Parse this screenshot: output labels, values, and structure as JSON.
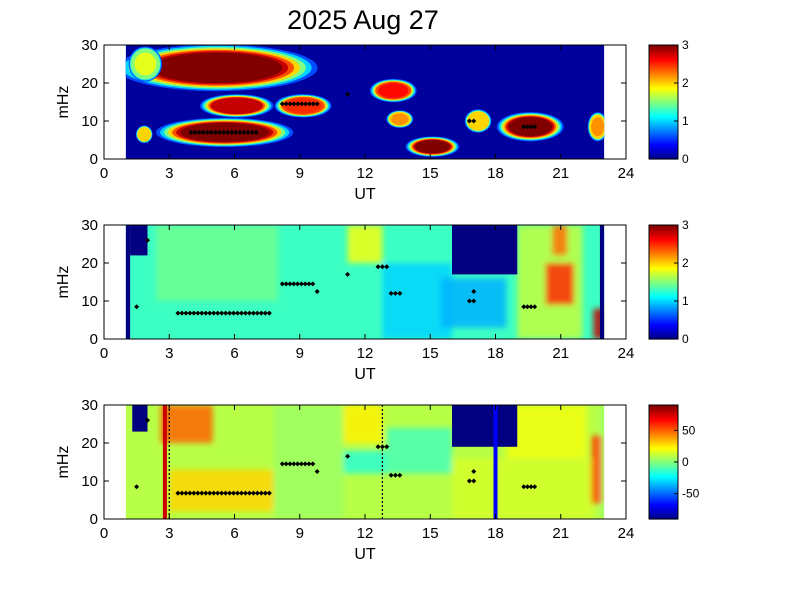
{
  "figure": {
    "title": "2025 Aug 27"
  },
  "chart_data": [
    {
      "type": "heatmap",
      "xlabel": "UT",
      "ylabel": "mHz",
      "xlim": [
        0,
        24
      ],
      "ylim": [
        0,
        30
      ],
      "x_ticks": [
        "0",
        "3",
        "6",
        "9",
        "12",
        "15",
        "18",
        "21",
        "24"
      ],
      "y_ticks": [
        "0",
        "10",
        "20",
        "30"
      ],
      "data_x_range": [
        1,
        23
      ],
      "colorbar": {
        "range": [
          0,
          3
        ],
        "ticks": [
          "0",
          "1",
          "2",
          "3"
        ]
      },
      "background_color": "#00009c",
      "hot_regions": [
        {
          "x": [
            2.2,
            8.2
          ],
          "y": [
            20,
            28
          ],
          "level": 3
        },
        {
          "x": [
            3.5,
            7.6
          ],
          "y": [
            4.5,
            9.5
          ],
          "level": 3
        },
        {
          "x": [
            5.0,
            7.2
          ],
          "y": [
            12,
            16
          ],
          "level": 2.8
        },
        {
          "x": [
            8.3,
            10.0
          ],
          "y": [
            12,
            16
          ],
          "level": 2.5
        },
        {
          "x": [
            12.6,
            14.0
          ],
          "y": [
            16,
            20
          ],
          "level": 2.6
        },
        {
          "x": [
            13.2,
            14.0
          ],
          "y": [
            9,
            12
          ],
          "level": 2.2
        },
        {
          "x": [
            14.3,
            15.9
          ],
          "y": [
            1.5,
            5
          ],
          "level": 3
        },
        {
          "x": [
            16.8,
            17.6
          ],
          "y": [
            8,
            12
          ],
          "level": 2.0
        },
        {
          "x": [
            18.6,
            20.6
          ],
          "y": [
            6,
            11
          ],
          "level": 3
        },
        {
          "x": [
            22.4,
            23.0
          ],
          "y": [
            6,
            11
          ],
          "level": 2.2
        },
        {
          "x": [
            1.4,
            2.4
          ],
          "y": [
            22,
            28
          ],
          "level": 1.8
        },
        {
          "x": [
            1.6,
            2.1
          ],
          "y": [
            5,
            8
          ],
          "level": 2.0
        }
      ],
      "markers": [
        {
          "x": [
            4.0,
            7.0
          ],
          "y": 7
        },
        {
          "x": [
            8.2,
            9.8
          ],
          "y": 14.5
        },
        {
          "x": [
            11.2,
            11.2
          ],
          "y": 17
        },
        {
          "x": [
            16.8,
            17.0
          ],
          "y": 10
        },
        {
          "x": [
            19.3,
            19.8
          ],
          "y": 8.5
        }
      ]
    },
    {
      "type": "heatmap",
      "xlabel": "UT",
      "ylabel": "mHz",
      "xlim": [
        0,
        24
      ],
      "ylim": [
        0,
        30
      ],
      "x_ticks": [
        "0",
        "3",
        "6",
        "9",
        "12",
        "15",
        "18",
        "21",
        "24"
      ],
      "y_ticks": [
        "0",
        "10",
        "20",
        "30"
      ],
      "data_x_range": [
        1,
        23
      ],
      "colorbar": {
        "range": [
          0,
          3
        ],
        "ticks": [
          "0",
          "1",
          "2",
          "3"
        ]
      },
      "base_level": 1.3,
      "variation_regions": [
        {
          "x": [
            2.4,
            8.0
          ],
          "y": [
            10,
            30
          ],
          "level": 1.45
        },
        {
          "x": [
            11.2,
            12.8
          ],
          "y": [
            20,
            30
          ],
          "level": 1.85
        },
        {
          "x": [
            12.8,
            16.0
          ],
          "y": [
            0,
            20
          ],
          "level": 1.0
        },
        {
          "x": [
            15.5,
            18.5
          ],
          "y": [
            3,
            16
          ],
          "level": 0.9
        },
        {
          "x": [
            19.0,
            22.0
          ],
          "y": [
            0,
            30
          ],
          "level": 1.7
        },
        {
          "x": [
            20.3,
            21.6
          ],
          "y": [
            9,
            20
          ],
          "level": 2.5
        },
        {
          "x": [
            20.6,
            21.3
          ],
          "y": [
            22,
            30
          ],
          "level": 2.3
        },
        {
          "x": [
            22.5,
            23.0
          ],
          "y": [
            0,
            8
          ],
          "level": 2.8
        }
      ],
      "low_regions": [
        {
          "x": [
            1.2,
            2.0
          ],
          "y": [
            22,
            30
          ],
          "level": 0
        },
        {
          "x": [
            16.0,
            19.0
          ],
          "y": [
            17,
            30
          ],
          "level": 0
        },
        {
          "x": [
            22.8,
            23.0
          ],
          "y": [
            0,
            30
          ],
          "level": 0
        },
        {
          "x": [
            1.0,
            1.2
          ],
          "y": [
            0,
            30
          ],
          "level": 0
        }
      ],
      "markers": [
        {
          "x": [
            1.5,
            1.5
          ],
          "y": 8.5
        },
        {
          "x": [
            2.0,
            2.0
          ],
          "y": 26
        },
        {
          "x": [
            3.4,
            7.6
          ],
          "y": 6.8
        },
        {
          "x": [
            8.2,
            9.6
          ],
          "y": 14.5
        },
        {
          "x": [
            9.8,
            9.8
          ],
          "y": 12.5
        },
        {
          "x": [
            11.2,
            11.2
          ],
          "y": 17
        },
        {
          "x": [
            12.6,
            13.0
          ],
          "y": 19
        },
        {
          "x": [
            13.2,
            13.6
          ],
          "y": 12
        },
        {
          "x": [
            16.8,
            17.0
          ],
          "y": 10
        },
        {
          "x": [
            17.0,
            17.0
          ],
          "y": 12.5
        },
        {
          "x": [
            19.3,
            19.8
          ],
          "y": 8.5
        }
      ]
    },
    {
      "type": "heatmap",
      "xlabel": "UT",
      "ylabel": "mHz",
      "xlim": [
        0,
        24
      ],
      "ylim": [
        0,
        30
      ],
      "x_ticks": [
        "0",
        "3",
        "6",
        "9",
        "12",
        "15",
        "18",
        "21",
        "24"
      ],
      "y_ticks": [
        "0",
        "10",
        "20",
        "30"
      ],
      "data_x_range": [
        1,
        23
      ],
      "colorbar": {
        "range": [
          -90,
          90
        ],
        "ticks": [
          "-50",
          "0",
          "50"
        ],
        "tick_values": [
          -50,
          0,
          50
        ]
      },
      "base_level": 10,
      "variation_regions": [
        {
          "x": [
            2.6,
            5.0
          ],
          "y": [
            20,
            30
          ],
          "level": 50
        },
        {
          "x": [
            3.0,
            7.8
          ],
          "y": [
            2,
            13
          ],
          "level": 30
        },
        {
          "x": [
            7.8,
            11.0
          ],
          "y": [
            0,
            30
          ],
          "level": 5
        },
        {
          "x": [
            11.0,
            12.8
          ],
          "y": [
            20,
            30
          ],
          "level": 25
        },
        {
          "x": [
            13.0,
            16.0
          ],
          "y": [
            12,
            24
          ],
          "level": -10
        },
        {
          "x": [
            16.0,
            22.5
          ],
          "y": [
            0,
            16
          ],
          "level": 15
        },
        {
          "x": [
            18.5,
            22.2
          ],
          "y": [
            16,
            30
          ],
          "level": 20
        },
        {
          "x": [
            22.4,
            22.9
          ],
          "y": [
            4,
            22
          ],
          "level": 55
        },
        {
          "x": [
            22.9,
            23.0
          ],
          "y": [
            0,
            30
          ],
          "level": -5
        },
        {
          "x": [
            11.0,
            13.0
          ],
          "y": [
            12,
            18
          ],
          "level": -15
        }
      ],
      "low_regions": [
        {
          "x": [
            1.3,
            2.0
          ],
          "y": [
            23,
            30
          ],
          "level": -90
        },
        {
          "x": [
            16.0,
            19.0
          ],
          "y": [
            19,
            30
          ],
          "level": -90
        }
      ],
      "lines": [
        {
          "x": 2.8,
          "color": "#cc0000",
          "style": "solid"
        },
        {
          "x": 18.0,
          "color": "#0000ff",
          "style": "solid"
        },
        {
          "x": 3.0,
          "color": "#000000",
          "style": "dotted"
        },
        {
          "x": 12.8,
          "color": "#000000",
          "style": "dotted"
        }
      ],
      "markers": [
        {
          "x": [
            1.5,
            1.5
          ],
          "y": 8.5
        },
        {
          "x": [
            2.0,
            2.0
          ],
          "y": 26
        },
        {
          "x": [
            3.4,
            7.6
          ],
          "y": 6.8
        },
        {
          "x": [
            8.2,
            9.6
          ],
          "y": 14.5
        },
        {
          "x": [
            9.8,
            9.8
          ],
          "y": 12.5
        },
        {
          "x": [
            11.2,
            11.2
          ],
          "y": 16.5
        },
        {
          "x": [
            12.6,
            13.0
          ],
          "y": 19
        },
        {
          "x": [
            13.2,
            13.6
          ],
          "y": 11.5
        },
        {
          "x": [
            16.8,
            17.0
          ],
          "y": 10
        },
        {
          "x": [
            17.0,
            17.0
          ],
          "y": 12.5
        },
        {
          "x": [
            19.3,
            19.8
          ],
          "y": 8.5
        }
      ]
    }
  ]
}
